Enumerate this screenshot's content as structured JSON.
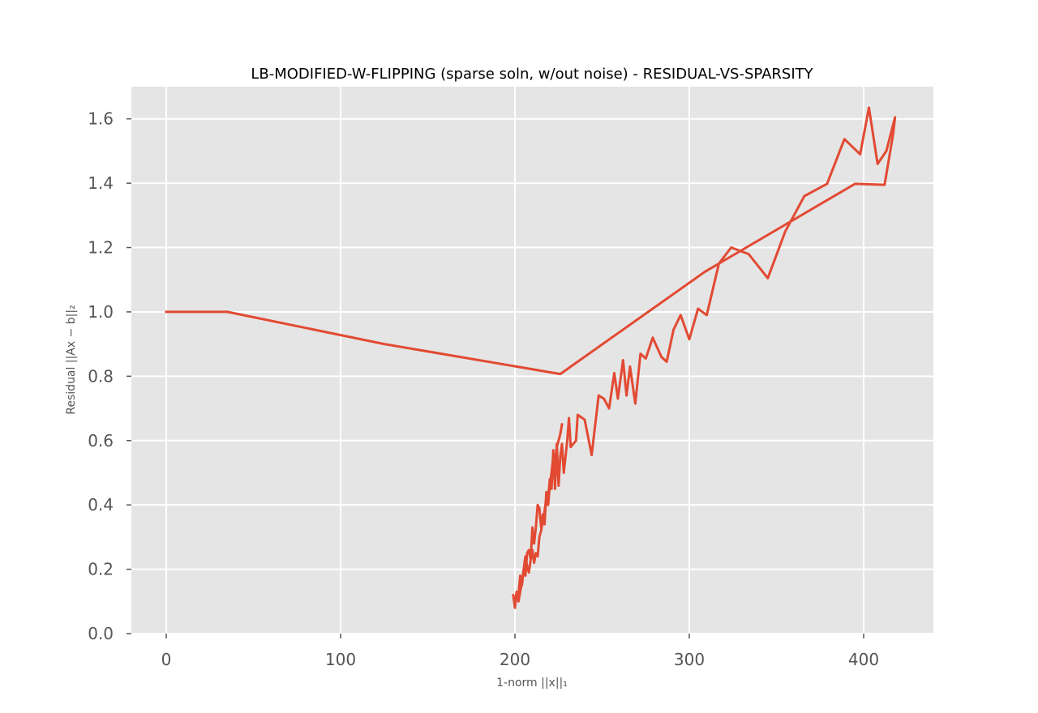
{
  "chart_data": {
    "type": "line",
    "title": "LB-MODIFIED-W-FLIPPING (sparse soln, w/out noise) - RESIDUAL-VS-SPARSITY",
    "xlabel": "1-norm ||x||₁",
    "ylabel": "Residual ||Ax − b||₂",
    "xlim": [
      -20,
      440
    ],
    "ylim": [
      0.0,
      1.7
    ],
    "x_ticks": [
      "0",
      "100",
      "200",
      "300",
      "400"
    ],
    "y_ticks": [
      "0.0",
      "0.2",
      "0.4",
      "0.6",
      "0.8",
      "1.0",
      "1.2",
      "1.4",
      "1.6"
    ],
    "grid": true,
    "background": "#e5e5e5",
    "line_color": "#e24a33",
    "series": [
      {
        "x": [
          0,
          35,
          125,
          226,
          309,
          395,
          412,
          417,
          418,
          413,
          408,
          403,
          398,
          389,
          379,
          366,
          355,
          345,
          334,
          324,
          317,
          310,
          305,
          300,
          295,
          291,
          287,
          284,
          279,
          275,
          272,
          269,
          266,
          264,
          262,
          259,
          257,
          254,
          251,
          248,
          244,
          240,
          236,
          235,
          232,
          231,
          230,
          228,
          227,
          226,
          225,
          224,
          223,
          222,
          221,
          220,
          219,
          218,
          217,
          216,
          215,
          214,
          213,
          212,
          211,
          210,
          209,
          208,
          207,
          206,
          205,
          204,
          203,
          202,
          201,
          200,
          199,
          200,
          201,
          202,
          203,
          204,
          205,
          206,
          207,
          208,
          209,
          210,
          211,
          212,
          213,
          214,
          215,
          216,
          217,
          218,
          219,
          220,
          221,
          222,
          223,
          224,
          225,
          226,
          227
        ],
        "y": [
          1.0,
          1.0,
          0.9,
          0.807,
          1.125,
          1.398,
          1.395,
          1.555,
          1.605,
          1.5,
          1.46,
          1.635,
          1.49,
          1.537,
          1.398,
          1.36,
          1.25,
          1.105,
          1.18,
          1.2,
          1.15,
          0.99,
          1.01,
          0.915,
          0.99,
          0.945,
          0.845,
          0.86,
          0.92,
          0.855,
          0.87,
          0.715,
          0.83,
          0.74,
          0.85,
          0.73,
          0.81,
          0.7,
          0.73,
          0.74,
          0.555,
          0.665,
          0.68,
          0.6,
          0.58,
          0.67,
          0.6,
          0.5,
          0.59,
          0.55,
          0.46,
          0.59,
          0.45,
          0.57,
          0.45,
          0.48,
          0.42,
          0.44,
          0.34,
          0.37,
          0.33,
          0.39,
          0.4,
          0.33,
          0.28,
          0.33,
          0.23,
          0.26,
          0.25,
          0.18,
          0.2,
          0.15,
          0.18,
          0.12,
          0.13,
          0.08,
          0.12,
          0.09,
          0.13,
          0.1,
          0.13,
          0.16,
          0.2,
          0.24,
          0.21,
          0.19,
          0.23,
          0.26,
          0.22,
          0.25,
          0.24,
          0.3,
          0.32,
          0.35,
          0.38,
          0.42,
          0.4,
          0.46,
          0.5,
          0.55,
          0.53,
          0.58,
          0.6,
          0.62,
          0.65
        ]
      }
    ]
  }
}
